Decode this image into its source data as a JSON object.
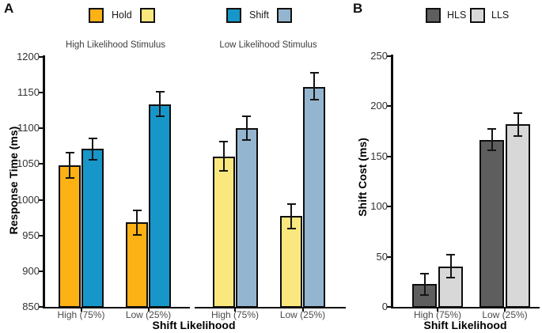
{
  "figure": {
    "background": "#ffffff",
    "panels": [
      "A",
      "B"
    ]
  },
  "chart_data": [
    {
      "type": "bar",
      "panel": "A",
      "ylabel": "Response Time (ms)",
      "xlabel": "Shift Likelihood",
      "ylim": [
        850,
        1200
      ],
      "yticks": [
        850,
        900,
        950,
        1000,
        1050,
        1100,
        1150,
        1200
      ],
      "grid": false,
      "legend": {
        "position": "top",
        "entries": [
          {
            "label": "Hold",
            "colors": [
              "#FCB115",
              "#FAE87E"
            ]
          },
          {
            "label": "Shift",
            "colors": [
              "#1797C9",
              "#94B5CF"
            ]
          }
        ]
      },
      "facets": [
        {
          "title": "High Likelihood Stimulus",
          "categories": [
            "High (75%)",
            "Low (25%)"
          ],
          "series": [
            {
              "name": "Hold",
              "color": "#FCB115",
              "values": [
                1048,
                968
              ],
              "err_low": [
                1030,
                951
              ],
              "err_high": [
                1066,
                985
              ]
            },
            {
              "name": "Shift",
              "color": "#1797C9",
              "values": [
                1071,
                1134
              ],
              "err_low": [
                1056,
                1117
              ],
              "err_high": [
                1086,
                1151
              ]
            }
          ]
        },
        {
          "title": "Low Likelihood Stimulus",
          "categories": [
            "High (75%)",
            "Low (25%)"
          ],
          "series": [
            {
              "name": "Hold",
              "color": "#FAE87E",
              "values": [
                1060,
                977
              ],
              "err_low": [
                1040,
                960
              ],
              "err_high": [
                1081,
                994
              ]
            },
            {
              "name": "Shift",
              "color": "#94B5CF",
              "values": [
                1100,
                1158
              ],
              "err_low": [
                1084,
                1140
              ],
              "err_high": [
                1117,
                1178
              ]
            }
          ]
        }
      ]
    },
    {
      "type": "bar",
      "panel": "B",
      "ylabel": "Shift Cost (ms)",
      "xlabel": "Shift Likelihood",
      "ylim": [
        0,
        250
      ],
      "yticks": [
        0,
        50,
        100,
        150,
        200,
        250
      ],
      "grid": false,
      "legend": {
        "position": "top",
        "entries": [
          {
            "label": "HLS",
            "colors": [
              "#5E5E5E"
            ]
          },
          {
            "label": "LLS",
            "colors": [
              "#D8D8D8"
            ]
          }
        ]
      },
      "facets": [
        {
          "title": "",
          "categories": [
            "High (75%)",
            "Low (25%)"
          ],
          "series": [
            {
              "name": "HLS",
              "color": "#5E5E5E",
              "values": [
                23,
                166
              ],
              "err_low": [
                12,
                156
              ],
              "err_high": [
                33,
                177
              ]
            },
            {
              "name": "LLS",
              "color": "#D8D8D8",
              "values": [
                40,
                182
              ],
              "err_low": [
                29,
                170
              ],
              "err_high": [
                52,
                193
              ]
            }
          ]
        }
      ]
    }
  ]
}
